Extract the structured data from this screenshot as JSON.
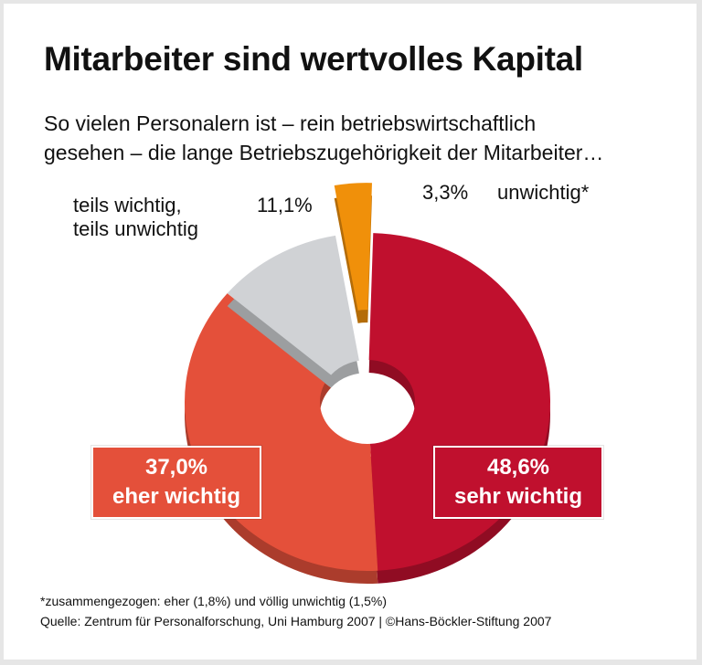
{
  "title": "Mitarbeiter sind wertvolles Kapital",
  "subtitle_line1": "So vielen Personalern ist – rein betriebswirtschaftlich",
  "subtitle_line2": "gesehen – die lange Betriebszugehörigkeit der Mitarbeiter…",
  "chart_data": {
    "type": "pie",
    "variant": "3d-donut",
    "title": "Mitarbeiter sind wertvolles Kapital",
    "slices": [
      {
        "label": "sehr wichtig",
        "value": 48.6,
        "value_label": "48,6%",
        "color": "#c0102e"
      },
      {
        "label": "eher wichtig",
        "value": 37.0,
        "value_label": "37,0%",
        "color": "#e4503a"
      },
      {
        "label": "teils wichtig, teils unwichtig",
        "label_line1": "teils wichtig,",
        "label_line2": "teils unwichtig",
        "value": 11.1,
        "value_label": "11,1%",
        "color": "#d0d2d5"
      },
      {
        "label": "unwichtig*",
        "value": 3.3,
        "value_label": "3,3%",
        "color": "#f0900a",
        "exploded": true
      }
    ]
  },
  "footnote": "*zusammengezogen: eher (1,8%) und völlig unwichtig (1,5%)",
  "source": "Quelle: Zentrum für Personalforschung, Uni Hamburg 2007 | ©Hans-Böckler-Stiftung 2007"
}
